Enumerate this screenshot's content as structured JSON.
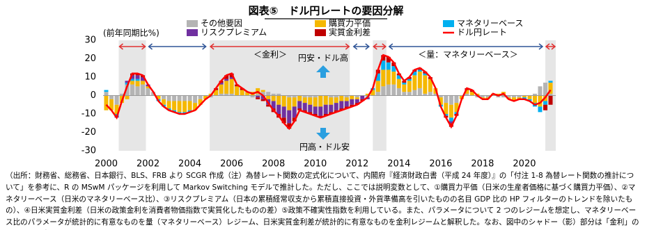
{
  "chart_data": {
    "type": "bar",
    "title": "図表⑤　ドル円レートの要因分解",
    "y_label": "(前年同期比%)",
    "x": [
      2000,
      2000.25,
      2000.5,
      2000.75,
      2001,
      2001.25,
      2001.5,
      2001.75,
      2002,
      2002.25,
      2002.5,
      2002.75,
      2003,
      2003.25,
      2003.5,
      2003.75,
      2004,
      2004.25,
      2004.5,
      2004.75,
      2005,
      2005.25,
      2005.5,
      2005.75,
      2006,
      2006.25,
      2006.5,
      2006.75,
      2007,
      2007.25,
      2007.5,
      2007.75,
      2008,
      2008.25,
      2008.5,
      2008.75,
      2009,
      2009.25,
      2009.5,
      2009.75,
      2010,
      2010.25,
      2010.5,
      2010.75,
      2011,
      2011.25,
      2011.5,
      2011.75,
      2012,
      2012.25,
      2012.5,
      2012.75,
      2013,
      2013.25,
      2013.5,
      2013.75,
      2014,
      2014.25,
      2014.5,
      2014.75,
      2015,
      2015.25,
      2015.5,
      2015.75,
      2016,
      2016.25,
      2016.5,
      2016.75,
      2017,
      2017.25,
      2017.5,
      2017.75,
      2018,
      2018.25,
      2018.5,
      2018.75,
      2019,
      2019.25,
      2019.5,
      2019.75,
      2020,
      2020.25,
      2020.5,
      2020.75,
      2021,
      2021.25
    ],
    "series": [
      {
        "name": "その他要因",
        "color": "#b4b4b4",
        "values": [
          2,
          -2,
          -5,
          1,
          6,
          6,
          5,
          6,
          4,
          2,
          0,
          -2,
          -3,
          -3,
          -3,
          -3,
          -3,
          -4,
          -2,
          0,
          -1,
          0,
          1,
          1,
          1,
          0,
          0,
          0,
          -1,
          1,
          2,
          2,
          1,
          1,
          0,
          -1,
          -1,
          0,
          -1,
          -1,
          -1,
          0,
          0,
          -1,
          -1,
          0,
          -1,
          0,
          -1,
          0,
          -1,
          0,
          2,
          5,
          6,
          6,
          4,
          2,
          2,
          3,
          4,
          1,
          2,
          1,
          -1,
          -4,
          -5,
          -4,
          0,
          1,
          0,
          -1,
          -1,
          -1,
          0,
          -1,
          -1,
          -1,
          -1,
          -1,
          0,
          0,
          1,
          5,
          7,
          1
        ]
      },
      {
        "name": "購買力平価",
        "color": "#f5b800",
        "values": [
          -8,
          -6,
          -5,
          -4,
          -2,
          2,
          3,
          2,
          1,
          0,
          -2,
          -3,
          -4,
          -5,
          -6,
          -6,
          -5,
          -4,
          -3,
          -2,
          1,
          3,
          5,
          7,
          8,
          5,
          3,
          2,
          2,
          3,
          1,
          -2,
          -3,
          -5,
          -6,
          -7,
          -5,
          -3,
          -3,
          -4,
          -5,
          -6,
          -5,
          -4,
          -3,
          -3,
          -2,
          -2,
          -1,
          0,
          1,
          3,
          6,
          9,
          8,
          7,
          5,
          4,
          6,
          8,
          9,
          10,
          7,
          3,
          -4,
          -6,
          -7,
          -5,
          -2,
          2,
          2,
          1,
          -1,
          -1,
          1,
          1,
          2,
          -1,
          -2,
          -1,
          -1,
          -2,
          -4,
          -6,
          -3,
          6
        ]
      },
      {
        "name": "マネタリーベース",
        "color": "#00b0f0",
        "values": [
          1,
          0,
          -1,
          0,
          1,
          1,
          1,
          0,
          0,
          0,
          -1,
          -1,
          -1,
          -1,
          -1,
          -1,
          -1,
          0,
          0,
          0,
          0,
          0,
          0,
          0,
          0,
          0,
          0,
          0,
          0,
          0,
          0,
          0,
          0,
          0,
          0,
          0,
          0,
          0,
          0,
          0,
          0,
          0,
          0,
          0,
          0,
          0,
          0,
          0,
          0,
          0,
          0,
          1,
          4,
          5,
          4,
          3,
          2,
          1,
          1,
          2,
          1,
          1,
          0,
          0,
          -1,
          -1,
          -2,
          -1,
          0,
          0,
          0,
          0,
          0,
          0,
          0,
          0,
          0,
          0,
          0,
          0,
          -1,
          -1,
          -2,
          -3,
          -2,
          1
        ]
      },
      {
        "name": "リスクプレミアム",
        "color": "#7030a0",
        "values": [
          0,
          0,
          -1,
          0,
          1,
          2,
          2,
          2,
          1,
          0,
          0,
          0,
          0,
          0,
          0,
          0,
          0,
          0,
          0,
          0,
          0,
          0,
          1,
          1,
          1,
          0,
          0,
          0,
          0,
          -1,
          -2,
          -3,
          -4,
          -5,
          -6,
          -7,
          -6,
          -4,
          -4,
          -4,
          -4,
          -5,
          -5,
          -4,
          -4,
          -4,
          -3,
          -3,
          -2,
          -2,
          -1,
          0,
          0,
          0,
          0,
          0,
          0,
          0,
          0,
          0,
          0,
          0,
          0,
          0,
          0,
          0,
          -1,
          0,
          0,
          0,
          0,
          0,
          0,
          0,
          0,
          0,
          0,
          0,
          0,
          0,
          0,
          0,
          0,
          0,
          0,
          0
        ]
      },
      {
        "name": "実質金利差",
        "color": "#c00000",
        "values": [
          0,
          0,
          0,
          0,
          0,
          1,
          1,
          1,
          0,
          0,
          0,
          0,
          0,
          0,
          0,
          0,
          0,
          0,
          0,
          0,
          0,
          1,
          1,
          2,
          2,
          1,
          1,
          0,
          0,
          -1,
          -1,
          -1,
          -2,
          -2,
          -3,
          -3,
          -2,
          -1,
          -1,
          -1,
          -1,
          -1,
          -1,
          -1,
          -1,
          -1,
          -1,
          -1,
          -1,
          -1,
          0,
          0,
          2,
          3,
          3,
          2,
          1,
          1,
          1,
          1,
          1,
          1,
          1,
          0,
          0,
          -1,
          -2,
          -1,
          0,
          1,
          1,
          0,
          0,
          0,
          0,
          0,
          0,
          0,
          0,
          0,
          0,
          0,
          0,
          0,
          -3,
          -5
        ]
      },
      {
        "name": "ドル円レート",
        "color": "#ff0000",
        "type": "line",
        "values": [
          -5,
          -8,
          -12,
          -3,
          5,
          12,
          12,
          11,
          6,
          2,
          -3,
          -6,
          -8,
          -9,
          -10,
          -10,
          -9,
          -8,
          -5,
          -2,
          0,
          4,
          8,
          11,
          12,
          6,
          4,
          2,
          1,
          2,
          0,
          -4,
          -8,
          -11,
          -15,
          -18,
          -14,
          -8,
          -9,
          -10,
          -11,
          -12,
          -11,
          -10,
          -9,
          -8,
          -7,
          -6,
          -5,
          -3,
          -1,
          4,
          14,
          22,
          21,
          18,
          12,
          8,
          10,
          14,
          15,
          13,
          10,
          4,
          -6,
          -12,
          -17,
          -11,
          -2,
          4,
          3,
          0,
          -2,
          -2,
          1,
          0,
          1,
          -2,
          -3,
          -2,
          -2,
          -3,
          -5,
          -4,
          -1,
          3
        ]
      }
    ],
    "xlim": [
      1999.85,
      2021.5
    ],
    "xticks": [
      2000,
      2002,
      2004,
      2006,
      2008,
      2010,
      2012,
      2014,
      2016,
      2018,
      2020
    ],
    "ylim": [
      -30,
      30
    ],
    "yticks": [
      -30,
      -20,
      -10,
      0,
      10,
      20,
      30
    ],
    "regimes": [
      {
        "from": 2000.6,
        "to": 2001.9,
        "color": "#e03030",
        "shade": true
      },
      {
        "from": 2002.0,
        "to": 2004.8,
        "color": "#2f5597",
        "shade": false
      },
      {
        "from": 2004.95,
        "to": 2011.65,
        "color": "#e03030",
        "shade": true
      },
      {
        "from": 2011.8,
        "to": 2012.6,
        "color": "#2f5597",
        "shade": false
      },
      {
        "from": 2012.75,
        "to": 2013.4,
        "color": "#e03030",
        "shade": true
      },
      {
        "from": 2013.5,
        "to": 2020.9,
        "color": "#2f5597",
        "shade": false
      },
      {
        "from": 2021.0,
        "to": 2021.5,
        "color": "#e03030",
        "shade": true
      }
    ],
    "annotations": {
      "rate_regime": "＜金利＞",
      "quantity_regime": "＜量：マネタリーベース＞",
      "yen_weak": "円安・ドル高",
      "yen_strong": "円高・ドル安"
    }
  },
  "note": "（出所：財務省、総務省、日本銀行、BLS、FRB より SCGR 作成（注）為替レート関数の定式化について、内閣府『経済財政白書（平成 24 年度）』の「付注 1-8 為替レート関数の推計について」を参考に、R の MSwM パッケージを利用して Markov Switching モデルで推計した。ただし、ここでは説明変数として、①購買力平価（日米の生産者価格に基づく購買力平価）、②マネタリーベース（日米のマネタリーベース比）、③リスクプレミアム（日本の累積経常収支から累積直接投資・外貨準備高を引いたものの名目 GDP 比の HP フィルターのトレンドを除いたもの）、④日米実質金利差（日米の政策金利を消費者物価指数で実質化したものの差）⑤政策不確実性指数を利用している。また、パラメータについて 2 つのレジームを想定し、マネタリーベース比のパラメータが統計的に有意なものを量（マネタリーベース）レジーム、日米実質金利差が統計的に有意なものを金利レジームと解釈した。なお、図中のシャドー（影）部分は「金利」のレジームを表す。"
}
